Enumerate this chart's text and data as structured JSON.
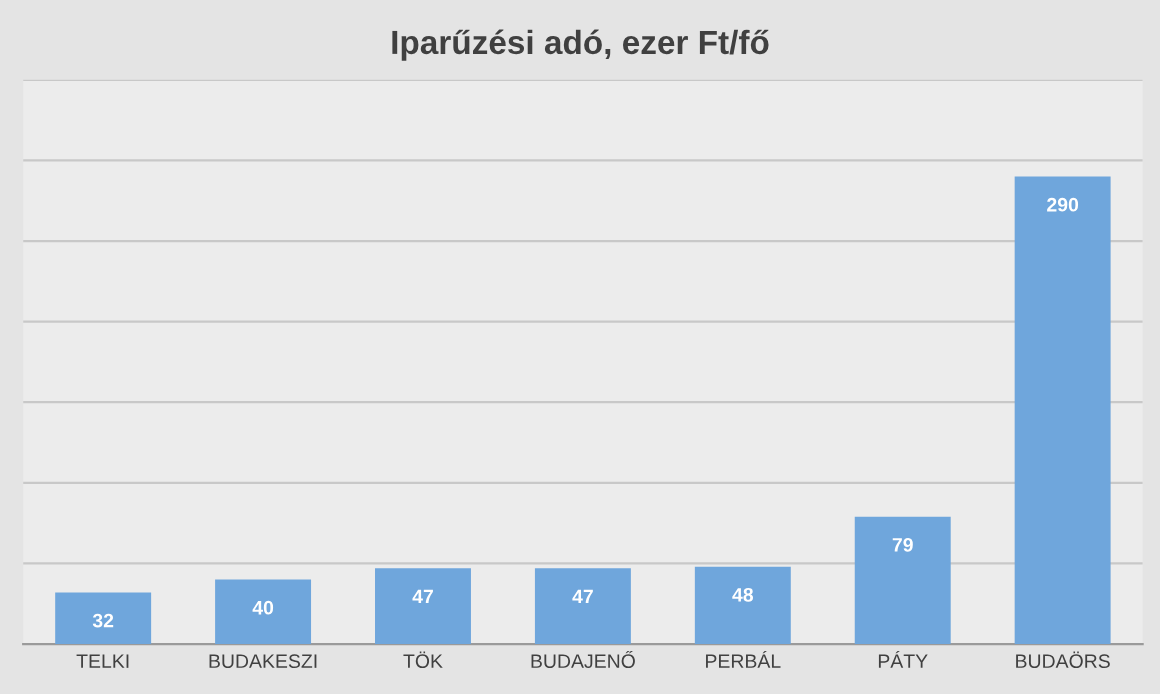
{
  "chart_data": {
    "type": "bar",
    "title": "Iparűzési adó, ezer Ft/fő",
    "categories": [
      "TELKI",
      "BUDAKESZI",
      "TÖK",
      "BUDAJENŐ",
      "PERBÁL",
      "PÁTY",
      "BUDAÖRS"
    ],
    "values": [
      32,
      40,
      47,
      47,
      48,
      79,
      290
    ],
    "color": "#6fa6dc",
    "ylim": [
      0,
      350
    ],
    "yticks": [
      {
        "value": 0,
        "label": null
      },
      {
        "value": 50,
        "label": null
      },
      {
        "value": 100,
        "label": null
      },
      {
        "value": 150,
        "label": null
      },
      {
        "value": 200,
        "label": null
      },
      {
        "value": 250,
        "label": null
      },
      {
        "value": 300,
        "label": null
      },
      {
        "value": 350,
        "label": null
      }
    ],
    "grid": "y",
    "data_labels": true,
    "tick_labels": "x"
  }
}
